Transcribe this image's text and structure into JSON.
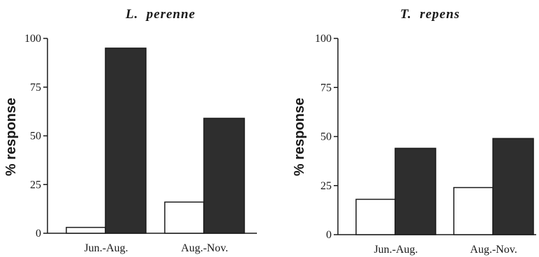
{
  "chart_data": [
    {
      "type": "bar",
      "title": "L.  perenne",
      "ylabel": "% response",
      "xlabel": "",
      "categories": [
        "Jun.-Aug.",
        "Aug.-Nov."
      ],
      "yticks": [
        0,
        25,
        50,
        75,
        100
      ],
      "ylim": [
        0,
        100
      ],
      "grid": false,
      "legend": "none",
      "series": [
        {
          "color": "#ffffff",
          "values": [
            3,
            16
          ]
        },
        {
          "color": "#2e2e2e",
          "values": [
            95,
            59
          ]
        }
      ]
    },
    {
      "type": "bar",
      "title": "T.  repens",
      "ylabel": "% response",
      "xlabel": "",
      "categories": [
        "Jun.-Aug.",
        "Aug.-Nov."
      ],
      "yticks": [
        0,
        25,
        50,
        75,
        100
      ],
      "ylim": [
        0,
        100
      ],
      "grid": false,
      "legend": "none",
      "series": [
        {
          "color": "#ffffff",
          "values": [
            18,
            24
          ]
        },
        {
          "color": "#2e2e2e",
          "values": [
            44,
            49
          ]
        }
      ]
    }
  ]
}
